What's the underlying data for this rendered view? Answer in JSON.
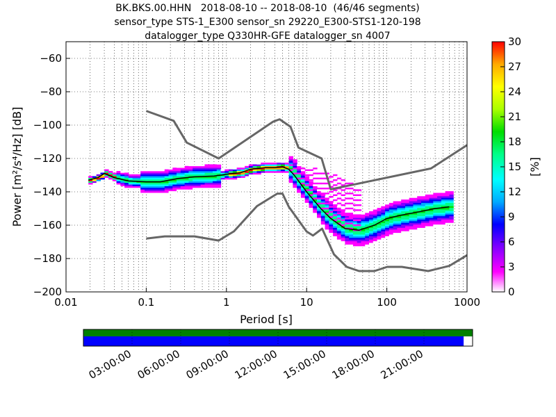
{
  "chart_data": {
    "type": "heatmap",
    "title_lines": [
      "BK.BKS.00.HHN   2018-08-10 -- 2018-08-10  (46/46 segments)",
      "sensor_type STS-1_E300 sensor_sn 29220_E300-STS1-120-198",
      "datalogger_type Q330HR-GFE datalogger_sn 4007"
    ],
    "xlabel": "Period [s]",
    "ylabel": "Power [m²/s⁴/Hz] [dB]",
    "x_scale": "log",
    "xlim": [
      0.01,
      1000
    ],
    "ylim": [
      -200,
      -50
    ],
    "x_ticks": [
      0.01,
      0.1,
      1,
      10,
      100,
      1000
    ],
    "x_tick_labels": [
      "0.01",
      "0.1",
      "1",
      "10",
      "100",
      "1000"
    ],
    "y_ticks": [
      -200,
      -180,
      -160,
      -140,
      -120,
      -100,
      -80,
      -60
    ],
    "y_tick_labels": [
      "−200",
      "−180",
      "−160",
      "−140",
      "−120",
      "−100",
      "−80",
      "−60"
    ],
    "grid": "dotted",
    "colorbar": {
      "label": "[%]",
      "range": [
        0,
        30
      ],
      "ticks": [
        0,
        3,
        6,
        9,
        12,
        15,
        18,
        21,
        24,
        27,
        30
      ],
      "tick_labels": [
        "0",
        "3",
        "6",
        "9",
        "12",
        "15",
        "18",
        "21",
        "24",
        "27",
        "30"
      ],
      "colormap": [
        "#ffffff",
        "#ff00ff",
        "#7f00ff",
        "#0000ff",
        "#00aaff",
        "#00ffff",
        "#00ff88",
        "#00dd00",
        "#aaff00",
        "#ffff00",
        "#ffaa00",
        "#ff0000"
      ]
    },
    "nhnm": [
      [
        0.1,
        -168
      ],
      [
        0.17,
        -166.7
      ],
      [
        0.4,
        -166.7
      ],
      [
        0.8,
        -169.2
      ],
      [
        1.24,
        -163.7
      ],
      [
        2.4,
        -148.6
      ],
      [
        4.3,
        -141.1
      ],
      [
        5,
        -141.1
      ],
      [
        6,
        -149
      ],
      [
        10,
        -163.8
      ],
      [
        12,
        -166.2
      ],
      [
        15.6,
        -162.1
      ],
      [
        21.9,
        -177.5
      ],
      [
        31.6,
        -185
      ],
      [
        45,
        -187.5
      ],
      [
        70,
        -187.5
      ],
      [
        101,
        -185
      ],
      [
        154,
        -185
      ],
      [
        328,
        -187.5
      ],
      [
        600,
        -184.4
      ],
      [
        1000,
        -178
      ]
    ],
    "nlnm_label": "",
    "nhnm_high": [
      [
        0.1,
        -91.5
      ],
      [
        0.22,
        -97.4
      ],
      [
        0.32,
        -110.5
      ],
      [
        0.8,
        -120
      ],
      [
        3.8,
        -98
      ],
      [
        4.6,
        -96.5
      ],
      [
        6.3,
        -101
      ],
      [
        7.9,
        -113.5
      ],
      [
        15.4,
        -120
      ],
      [
        20,
        -138.5
      ],
      [
        354.8,
        -126
      ],
      [
        1000,
        -112
      ]
    ],
    "mode_curve": [
      [
        0.019,
        -133
      ],
      [
        0.025,
        -131.5
      ],
      [
        0.03,
        -129
      ],
      [
        0.04,
        -131.5
      ],
      [
        0.06,
        -133.5
      ],
      [
        0.1,
        -134
      ],
      [
        0.15,
        -134
      ],
      [
        0.25,
        -132
      ],
      [
        0.4,
        -131
      ],
      [
        0.7,
        -130.5
      ],
      [
        1,
        -129.5
      ],
      [
        1.5,
        -128.5
      ],
      [
        2,
        -126.5
      ],
      [
        3,
        -125.5
      ],
      [
        4,
        -125.5
      ],
      [
        5,
        -125
      ],
      [
        6,
        -126.5
      ],
      [
        7,
        -130
      ],
      [
        10,
        -140
      ],
      [
        15,
        -150
      ],
      [
        20,
        -156
      ],
      [
        30,
        -162
      ],
      [
        45,
        -163
      ],
      [
        70,
        -160
      ],
      [
        100,
        -156
      ],
      [
        150,
        -154
      ],
      [
        250,
        -152
      ],
      [
        400,
        -150
      ],
      [
        600,
        -149
      ]
    ],
    "segment_bar": {
      "time_labels": [
        "03:00:00",
        "06:00:00",
        "09:00:00",
        "12:00:00",
        "15:00:00",
        "18:00:00",
        "21:00:00"
      ],
      "colors": {
        "available": "#008000",
        "used": "#0000ff"
      },
      "used_fraction": 0.977
    }
  }
}
